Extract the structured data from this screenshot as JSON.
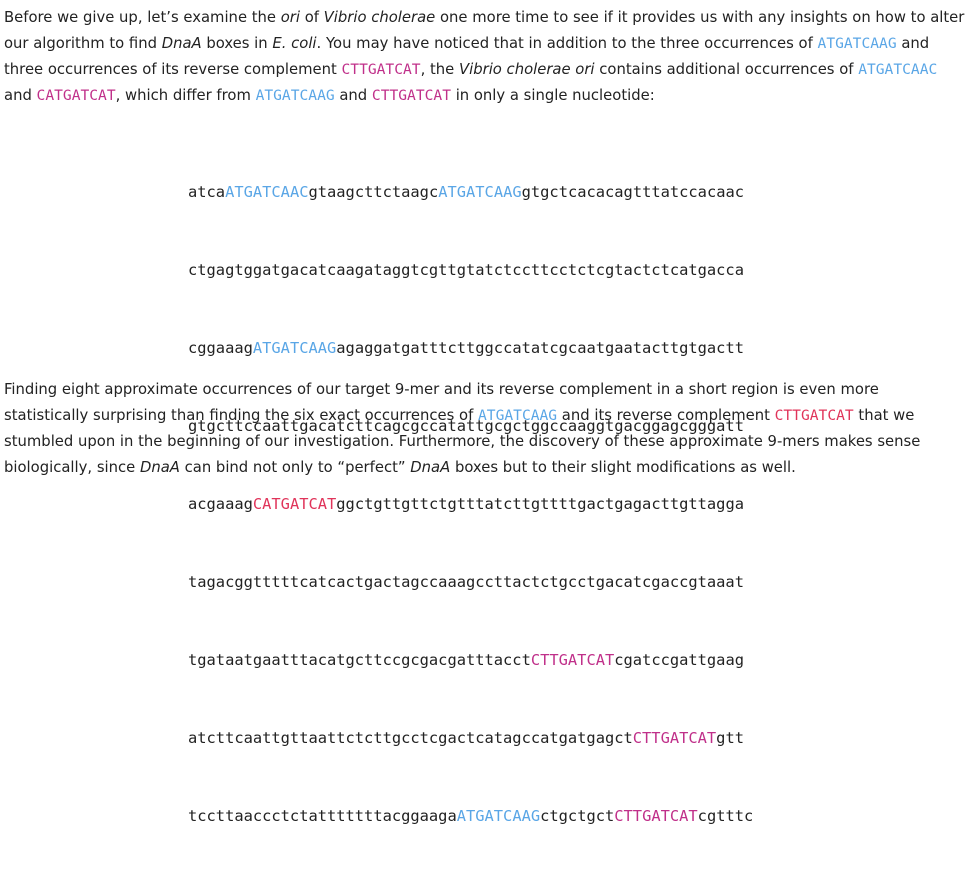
{
  "intro": {
    "t1": "Before we give up, let’s examine the ",
    "ori1": "ori",
    "t2": " of ",
    "vibrio1": "Vibrio cholerae",
    "t3": " one more time to see if it provides us with any insights on how to alter our algorithm to find ",
    "dnaa1": "DnaA",
    "t4": " boxes in ",
    "ecoli": "E. coli",
    "t5": ". You may have noticed that in addition to the three occurrences of ",
    "k1": "ATGATCAAG",
    "t6": " and three occurrences of its reverse complement ",
    "k2": "CTTGATCAT",
    "t7": ", the ",
    "vibrio2": "Vibrio cholerae ori",
    "t8": " contains additional occurrences of ",
    "k3": "ATGATCAAC",
    "t9": " and ",
    "k4": "CATGATCAT",
    "t10": ", which differ from ",
    "k5": "ATGATCAAG",
    "t11": " and ",
    "k6": "CTTGATCAT",
    "t12": " in only a single nucleotide:"
  },
  "sequence": [
    {
      "a": "atca",
      "m": "ATGATCAAC",
      "b": "gtaagcttctaagc",
      "m2": "ATGATCAAG",
      "c": "gtgctcacacagtttatccacaac"
    },
    {
      "a": "ctgagtggatgacatcaagataggtcgttgtatctccttcctctcgtactctcatgacca"
    },
    {
      "a": "cggaaag",
      "m": "ATGATCAAG",
      "b": "agaggatgatttcttggccatatcgcaatgaatacttgtgactt"
    },
    {
      "a": "gtgcttccaattgacatcttcagcgccatattgcgctggccaaggtgacggagcgggatt"
    },
    {
      "a": "acgaaag",
      "m": "CATGATCAT",
      "b": "ggctgttgttctgtttatcttgttttgactgagacttgttagga"
    },
    {
      "a": "tagacggtttttcatcactgactagccaaagccttactctgcctgacatcgaccgtaaat"
    },
    {
      "a": "tgataatgaatttacatgcttccgcgacgatttacct",
      "m": "CTTGATCAT",
      "b": "cgatccgattgaag"
    },
    {
      "a": "atcttcaattgttaattctcttgcctcgactcatagccatgatgagct",
      "m": "CTTGATCAT",
      "b": "gtt"
    },
    {
      "a": "tccttaaccctctatttttttacggaaga",
      "m": "ATGATCAAG",
      "b": "ctgctgct",
      "m2": "CTTGATCAT",
      "c": "cgtttc"
    }
  ],
  "outro": {
    "t1": "Finding eight approximate occurrences of our target 9-mer and its reverse complement in a short region is even more statistically surprising than finding the six exact occurrences of ",
    "k1": "ATGATCAAG",
    "t2": " and its reverse complement ",
    "k2": "CTTGATCAT",
    "t3": " that we stumbled upon in the beginning of our investigation. Furthermore, the discovery of these approximate 9-mers makes sense biologically, since ",
    "dnaa1": "DnaA",
    "t4": " can bind not only to “perfect” ",
    "dnaa2": "DnaA",
    "t5": " boxes but to their slight modifications as well."
  },
  "colors": {
    "blue": "#5aa6e6",
    "pink": "#c0308a",
    "red": "#e0345a"
  }
}
